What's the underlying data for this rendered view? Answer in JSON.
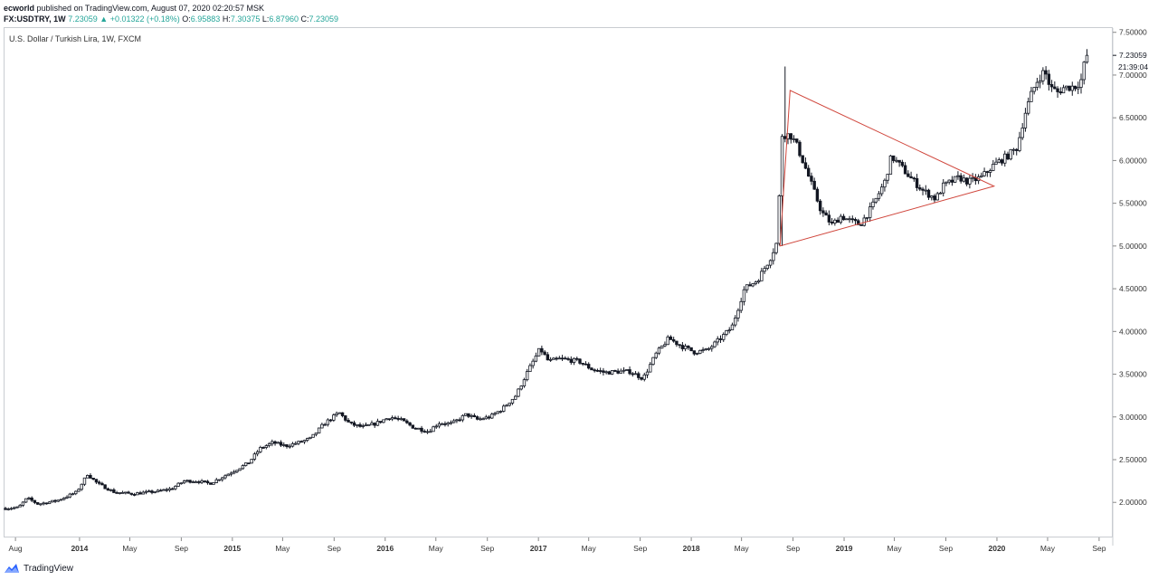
{
  "header": {
    "publisher_author": "ecworld",
    "publisher_text": "published on TradingView.com, August 07, 2020 02:20:57 MSK",
    "symbol": "FX:USDTRY, 1W",
    "last": "7.23059",
    "change": "+0.01322 (+0.18%)",
    "open_label": "O:",
    "open": "6.95883",
    "high_label": "H:",
    "high": "7.30375",
    "low_label": "L:",
    "low": "6.87960",
    "close_label": "C:",
    "close": "7.23059",
    "up_arrow_icon": "triangle-up-icon"
  },
  "legend": {
    "title": "U.S. Dollar / Turkish Lira, 1W, FXCM"
  },
  "price_scale": {
    "ticks": [
      "7.50000",
      "7.00000",
      "6.50000",
      "6.00000",
      "5.50000",
      "5.00000",
      "4.50000",
      "4.00000",
      "3.50000",
      "3.00000",
      "2.50000",
      "2.00000"
    ],
    "last_price_label": "7.23059",
    "countdown_label": "21:39:04"
  },
  "colors": {
    "candle": "#131722",
    "frame": "#c9ccd1",
    "trendline": "#d0463c",
    "accent": "#26a69a",
    "logo": "#2962ff"
  },
  "footer": {
    "brand": "TradingView",
    "logo_icon": "tradingview-logo-icon"
  },
  "chart_data": {
    "type": "candlestick",
    "title": "U.S. Dollar / Turkish Lira, 1W, FXCM",
    "ylim": [
      1.6,
      7.55
    ],
    "x_tick_labels": [
      "Aug",
      "2014",
      "May",
      "Sep",
      "2015",
      "May",
      "Sep",
      "2016",
      "May",
      "Sep",
      "2017",
      "May",
      "Sep",
      "2018",
      "May",
      "Sep",
      "2019",
      "May",
      "Sep",
      "2020",
      "May",
      "Sep"
    ],
    "x_tick_dates": [
      "2013-08-01",
      "2014-01-01",
      "2014-05-01",
      "2014-09-01",
      "2015-01-01",
      "2015-05-01",
      "2015-09-01",
      "2016-01-01",
      "2016-05-01",
      "2016-09-01",
      "2017-01-01",
      "2017-05-01",
      "2017-09-01",
      "2018-01-01",
      "2018-05-01",
      "2018-09-01",
      "2019-01-01",
      "2019-05-01",
      "2019-09-01",
      "2020-01-01",
      "2020-05-01",
      "2020-09-01"
    ],
    "price_path": [
      [
        "2013-07-15",
        1.93
      ],
      [
        "2013-08-15",
        1.94
      ],
      [
        "2013-09-05",
        2.05
      ],
      [
        "2013-10-01",
        1.98
      ],
      [
        "2013-11-15",
        2.02
      ],
      [
        "2014-01-01",
        2.12
      ],
      [
        "2014-01-27",
        2.33
      ],
      [
        "2014-02-20",
        2.22
      ],
      [
        "2014-04-01",
        2.12
      ],
      [
        "2014-05-15",
        2.1
      ],
      [
        "2014-07-15",
        2.13
      ],
      [
        "2014-08-15",
        2.16
      ],
      [
        "2014-09-15",
        2.25
      ],
      [
        "2014-10-15",
        2.25
      ],
      [
        "2014-11-15",
        2.22
      ],
      [
        "2015-01-01",
        2.34
      ],
      [
        "2015-02-15",
        2.46
      ],
      [
        "2015-03-15",
        2.63
      ],
      [
        "2015-04-15",
        2.7
      ],
      [
        "2015-05-15",
        2.66
      ],
      [
        "2015-06-15",
        2.7
      ],
      [
        "2015-07-15",
        2.75
      ],
      [
        "2015-08-15",
        2.92
      ],
      [
        "2015-09-20",
        3.05
      ],
      [
        "2015-10-15",
        2.92
      ],
      [
        "2015-11-15",
        2.88
      ],
      [
        "2015-12-15",
        2.92
      ],
      [
        "2016-01-20",
        3.0
      ],
      [
        "2016-02-15",
        2.96
      ],
      [
        "2016-03-15",
        2.88
      ],
      [
        "2016-04-20",
        2.83
      ],
      [
        "2016-05-15",
        2.93
      ],
      [
        "2016-06-15",
        2.92
      ],
      [
        "2016-07-20",
        3.03
      ],
      [
        "2016-08-15",
        2.97
      ],
      [
        "2016-09-15",
        3.0
      ],
      [
        "2016-10-15",
        3.1
      ],
      [
        "2016-11-15",
        3.25
      ],
      [
        "2016-12-10",
        3.5
      ],
      [
        "2017-01-12",
        3.8
      ],
      [
        "2017-02-01",
        3.65
      ],
      [
        "2017-03-01",
        3.68
      ],
      [
        "2017-04-15",
        3.65
      ],
      [
        "2017-05-15",
        3.56
      ],
      [
        "2017-06-15",
        3.52
      ],
      [
        "2017-07-15",
        3.53
      ],
      [
        "2017-08-15",
        3.53
      ],
      [
        "2017-09-15",
        3.45
      ],
      [
        "2017-10-15",
        3.73
      ],
      [
        "2017-11-15",
        3.92
      ],
      [
        "2017-12-15",
        3.83
      ],
      [
        "2018-01-15",
        3.76
      ],
      [
        "2018-02-15",
        3.78
      ],
      [
        "2018-03-15",
        3.9
      ],
      [
        "2018-04-15",
        4.05
      ],
      [
        "2018-05-15",
        4.5
      ],
      [
        "2018-06-15",
        4.6
      ],
      [
        "2018-07-15",
        4.85
      ],
      [
        "2018-08-01",
        5.05
      ],
      [
        "2018-08-13",
        6.3
      ],
      [
        "2018-09-01",
        6.3
      ],
      [
        "2018-09-15",
        6.2
      ],
      [
        "2018-10-01",
        6.0
      ],
      [
        "2018-10-20",
        5.75
      ],
      [
        "2018-11-15",
        5.4
      ],
      [
        "2018-12-10",
        5.25
      ],
      [
        "2019-01-01",
        5.35
      ],
      [
        "2019-01-20",
        5.3
      ],
      [
        "2019-02-15",
        5.25
      ],
      [
        "2019-03-15",
        5.45
      ],
      [
        "2019-04-15",
        5.75
      ],
      [
        "2019-05-01",
        6.05
      ],
      [
        "2019-05-20",
        5.95
      ],
      [
        "2019-06-15",
        5.8
      ],
      [
        "2019-07-15",
        5.65
      ],
      [
        "2019-08-15",
        5.55
      ],
      [
        "2019-09-01",
        5.7
      ],
      [
        "2019-09-20",
        5.75
      ],
      [
        "2019-10-10",
        5.8
      ],
      [
        "2019-11-01",
        5.75
      ],
      [
        "2019-12-01",
        5.8
      ],
      [
        "2020-01-01",
        5.95
      ],
      [
        "2020-02-01",
        6.05
      ],
      [
        "2020-02-25",
        6.15
      ],
      [
        "2020-03-15",
        6.55
      ],
      [
        "2020-04-01",
        6.8
      ],
      [
        "2020-04-15",
        6.95
      ],
      [
        "2020-05-01",
        7.05
      ],
      [
        "2020-05-15",
        6.85
      ],
      [
        "2020-06-01",
        6.8
      ],
      [
        "2020-06-15",
        6.85
      ],
      [
        "2020-07-15",
        6.87
      ],
      [
        "2020-07-30",
        6.96
      ],
      [
        "2020-08-06",
        7.23059
      ]
    ],
    "spikes": [
      {
        "date": "2018-08-13",
        "high": 7.1
      },
      {
        "date": "2018-08-06",
        "low": 5.0
      },
      {
        "date": "2020-08-06",
        "high": 7.30375
      }
    ],
    "annotations": {
      "triangle": [
        [
          "2018-08-01",
          5.0
        ],
        [
          "2018-08-25",
          6.82
        ],
        [
          "2019-12-25",
          5.7
        ]
      ]
    }
  }
}
